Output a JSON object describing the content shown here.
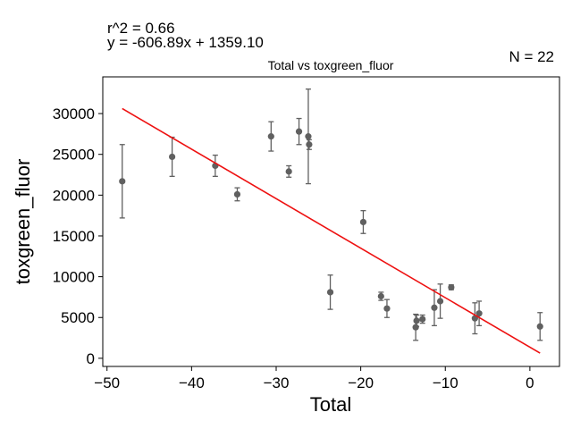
{
  "annotations": {
    "r2": "r^2 = 0.66",
    "equation": "y = -606.89x + 1359.10",
    "n": "N = 22"
  },
  "chart_data": {
    "type": "scatter",
    "title": "Total vs toxgreen_fluor",
    "xlabel": "Total",
    "ylabel": "toxgreen_fluor",
    "xlim": [
      -50.5,
      3.5
    ],
    "ylim": [
      -1000,
      34500
    ],
    "xticks": [
      -50,
      -40,
      -30,
      -20,
      -10,
      0
    ],
    "yticks": [
      0,
      5000,
      10000,
      15000,
      20000,
      25000,
      30000
    ],
    "grid": false,
    "colors": {
      "points": "#606060",
      "fit": "#ee1111"
    },
    "fit": {
      "slope": -606.89,
      "intercept": 1359.1,
      "x_range": [
        -48.2,
        1.2
      ]
    },
    "points": [
      {
        "x": -48.2,
        "y": 21700,
        "err": 4500
      },
      {
        "x": -42.3,
        "y": 24700,
        "err": 2400
      },
      {
        "x": -37.2,
        "y": 23600,
        "err": 1300
      },
      {
        "x": -34.6,
        "y": 20100,
        "err": 800
      },
      {
        "x": -30.6,
        "y": 27200,
        "err": 1800
      },
      {
        "x": -28.5,
        "y": 22900,
        "err": 700
      },
      {
        "x": -27.3,
        "y": 27800,
        "err": 1600
      },
      {
        "x": -26.2,
        "y": 27200,
        "err": 5800
      },
      {
        "x": -26.1,
        "y": 26200,
        "err": 600
      },
      {
        "x": -23.6,
        "y": 8100,
        "err": 2100
      },
      {
        "x": -19.7,
        "y": 16700,
        "err": 1400
      },
      {
        "x": -17.6,
        "y": 7600,
        "err": 500
      },
      {
        "x": -16.9,
        "y": 6100,
        "err": 1100
      },
      {
        "x": -13.5,
        "y": 3800,
        "err": 1600
      },
      {
        "x": -13.4,
        "y": 4600,
        "err": 700
      },
      {
        "x": -12.7,
        "y": 4800,
        "err": 500
      },
      {
        "x": -11.3,
        "y": 6200,
        "err": 2200
      },
      {
        "x": -10.6,
        "y": 7000,
        "err": 2100
      },
      {
        "x": -9.3,
        "y": 8700,
        "err": 300
      },
      {
        "x": -6.5,
        "y": 4900,
        "err": 1900
      },
      {
        "x": -6.0,
        "y": 5500,
        "err": 1500
      },
      {
        "x": 1.2,
        "y": 3900,
        "err": 1700
      }
    ]
  }
}
